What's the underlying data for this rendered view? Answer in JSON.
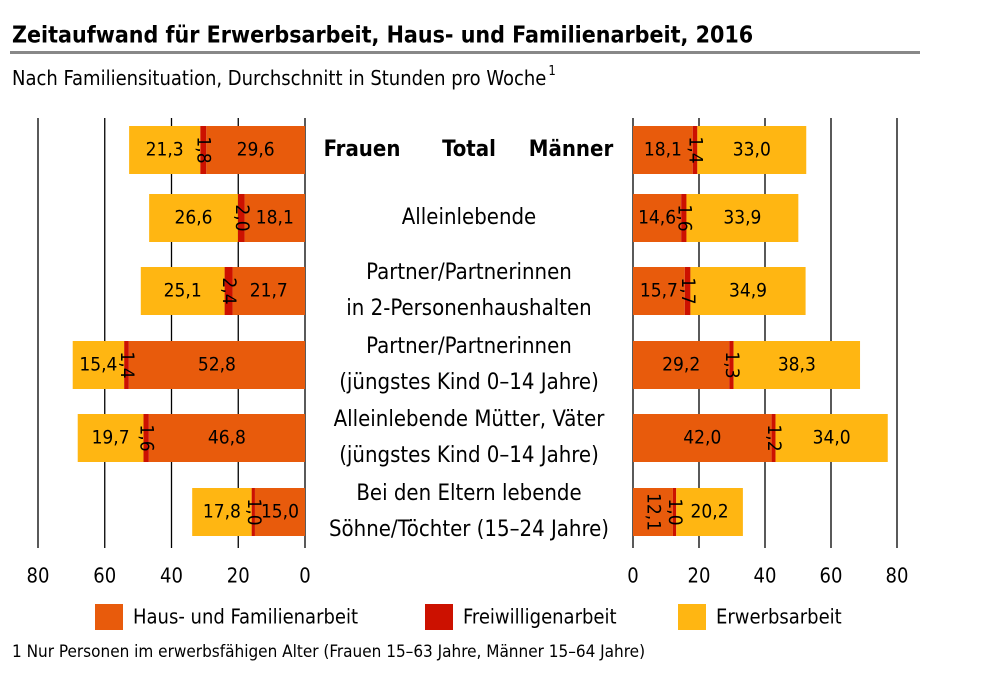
{
  "chart_data": {
    "type": "butterfly-stacked-bar",
    "title": "Zeitaufwand für Erwerbsarbeit, Haus- und Familienarbeit, 2016",
    "subtitle": "Nach Familiensituation, Durchschnitt in Stunden pro Woche",
    "subtitle_note": "1",
    "panels": [
      "Frauen",
      "Männer"
    ],
    "categories": [
      [
        "Total"
      ],
      [
        "Alleinlebende"
      ],
      [
        "Partner/Partnerinnen",
        "in 2-Personenhaushalten"
      ],
      [
        "Partner/Partnerinnen",
        "(jüngstes Kind 0–14 Jahre)"
      ],
      [
        "Alleinlebende Mütter, Väter",
        "(jüngstes Kind 0–14 Jahre)"
      ],
      [
        "Bei den Eltern lebende",
        "Söhne/Töchter (15–24 Jahre)"
      ]
    ],
    "series": [
      {
        "name": "Haus- und Familienarbeit",
        "color": "#e85b0c",
        "values": [
          [
            29.6,
            18.1,
            21.7,
            52.8,
            46.8,
            15.0
          ],
          [
            18.1,
            14.6,
            15.7,
            29.2,
            42.0,
            12.1
          ]
        ],
        "value_labels": [
          [
            "29,6",
            "18,1",
            "21,7",
            "52,8",
            "46,8",
            "15,0"
          ],
          [
            "18,1",
            "14,6",
            "15,7",
            "29,2",
            "42,0",
            "12,1"
          ]
        ]
      },
      {
        "name": "Freiwilligenarbeit",
        "color": "#cc1100",
        "values": [
          [
            1.8,
            2.0,
            2.4,
            1.4,
            1.6,
            1.0
          ],
          [
            1.4,
            1.6,
            1.7,
            1.3,
            1.2,
            1.0
          ]
        ],
        "value_labels": [
          [
            "1,8",
            "2,0",
            "2,4",
            "1,4",
            "1,6",
            "1,0"
          ],
          [
            "1,4",
            "1,6",
            "1,7",
            "1,3",
            "1,2",
            "1,0"
          ]
        ]
      },
      {
        "name": "Erwerbsarbeit",
        "color": "#ffb612",
        "values": [
          [
            21.3,
            26.6,
            25.1,
            15.4,
            19.7,
            17.8
          ],
          [
            33.0,
            33.9,
            34.9,
            38.3,
            34.0,
            20.2
          ]
        ],
        "value_labels": [
          [
            "21,3",
            "26,6",
            "25,1",
            "15,4",
            "19,7",
            "17,8"
          ],
          [
            "33,0",
            "33,9",
            "34,9",
            "38,3",
            "34,0",
            "20,2"
          ]
        ]
      }
    ],
    "xlim": [
      0,
      80
    ],
    "xticks": [
      0,
      20,
      40,
      60,
      80
    ],
    "grid": true,
    "footnote": "1 Nur Personen im erwerbsfähigen Alter (Frauen 15–63 Jahre, Männer 15–64 Jahre)"
  }
}
